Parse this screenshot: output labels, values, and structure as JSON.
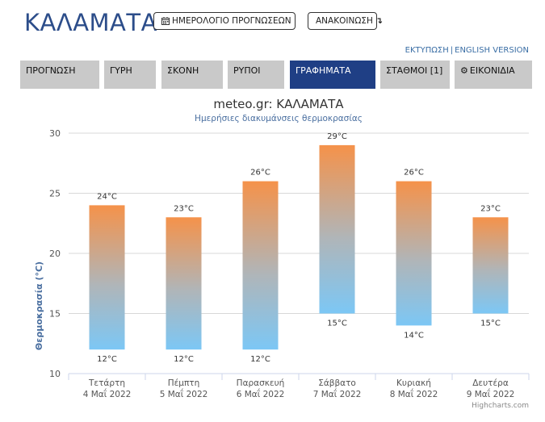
{
  "header": {
    "city": "ΚΑΛΑΜΑΤΑ",
    "calendar_button": "ΗΜΕΡΟΛΟΓΙΟ ΠΡΟΓΝΩΣΕΩΝ",
    "announce_button": "ΑΝΑΚΟΙΝΩΣΗ",
    "announce_icon": "arrow-down-turn-icon",
    "calendar_icon": "calendar-icon"
  },
  "utility_links": {
    "print": "ΕΚΤΥΠΩΣΗ",
    "separator": "|",
    "english": "ENGLISH VERSION"
  },
  "tabs": [
    {
      "label": "ΠΡΟΓΝΩΣΗ",
      "active": false
    },
    {
      "label": "ΓΥΡΗ",
      "active": false
    },
    {
      "label": "ΣΚΟΝΗ",
      "active": false
    },
    {
      "label": "ΡΥΠΟΙ",
      "active": false
    },
    {
      "label": "ΓΡΑΦΗΜΑΤΑ",
      "active": true
    },
    {
      "label": "ΣΤΑΘΜΟΙ [1]",
      "active": false
    },
    {
      "label": "ΕΙΚΟΝΙΔΙΑ",
      "active": false,
      "icon": "gear-icon"
    }
  ],
  "colors": {
    "title_blue": "#2c4d8a",
    "active_tab": "#1f3f85",
    "inactive_tab": "#c9c9c9",
    "bar_top": "#f5924a",
    "bar_bottom": "#7cc7f5"
  },
  "chart_data": {
    "type": "columnrange",
    "title": "meteo.gr: ΚΑΛΑΜΑΤΑ",
    "subtitle": "Ημερήσιες διακυμάνσεις θερμοκρασίας",
    "ylabel": "Θερμοκρασία (°C)",
    "ylim": [
      10,
      30
    ],
    "yticks": [
      10,
      15,
      20,
      25,
      30
    ],
    "grid": true,
    "categories": [
      {
        "day": "Τετάρτη",
        "date": "4 Μαΐ 2022"
      },
      {
        "day": "Πέμπτη",
        "date": "5 Μαΐ 2022"
      },
      {
        "day": "Παρασκευή",
        "date": "6 Μαΐ 2022"
      },
      {
        "day": "Σάββατο",
        "date": "7 Μαΐ 2022"
      },
      {
        "day": "Κυριακή",
        "date": "8 Μαΐ 2022"
      },
      {
        "day": "Δευτέρα",
        "date": "9 Μαΐ 2022"
      }
    ],
    "min": [
      12,
      12,
      12,
      15,
      14,
      15
    ],
    "max": [
      24,
      23,
      26,
      29,
      26,
      23
    ],
    "unit_suffix": "°C",
    "credits": "Highcharts.com"
  }
}
